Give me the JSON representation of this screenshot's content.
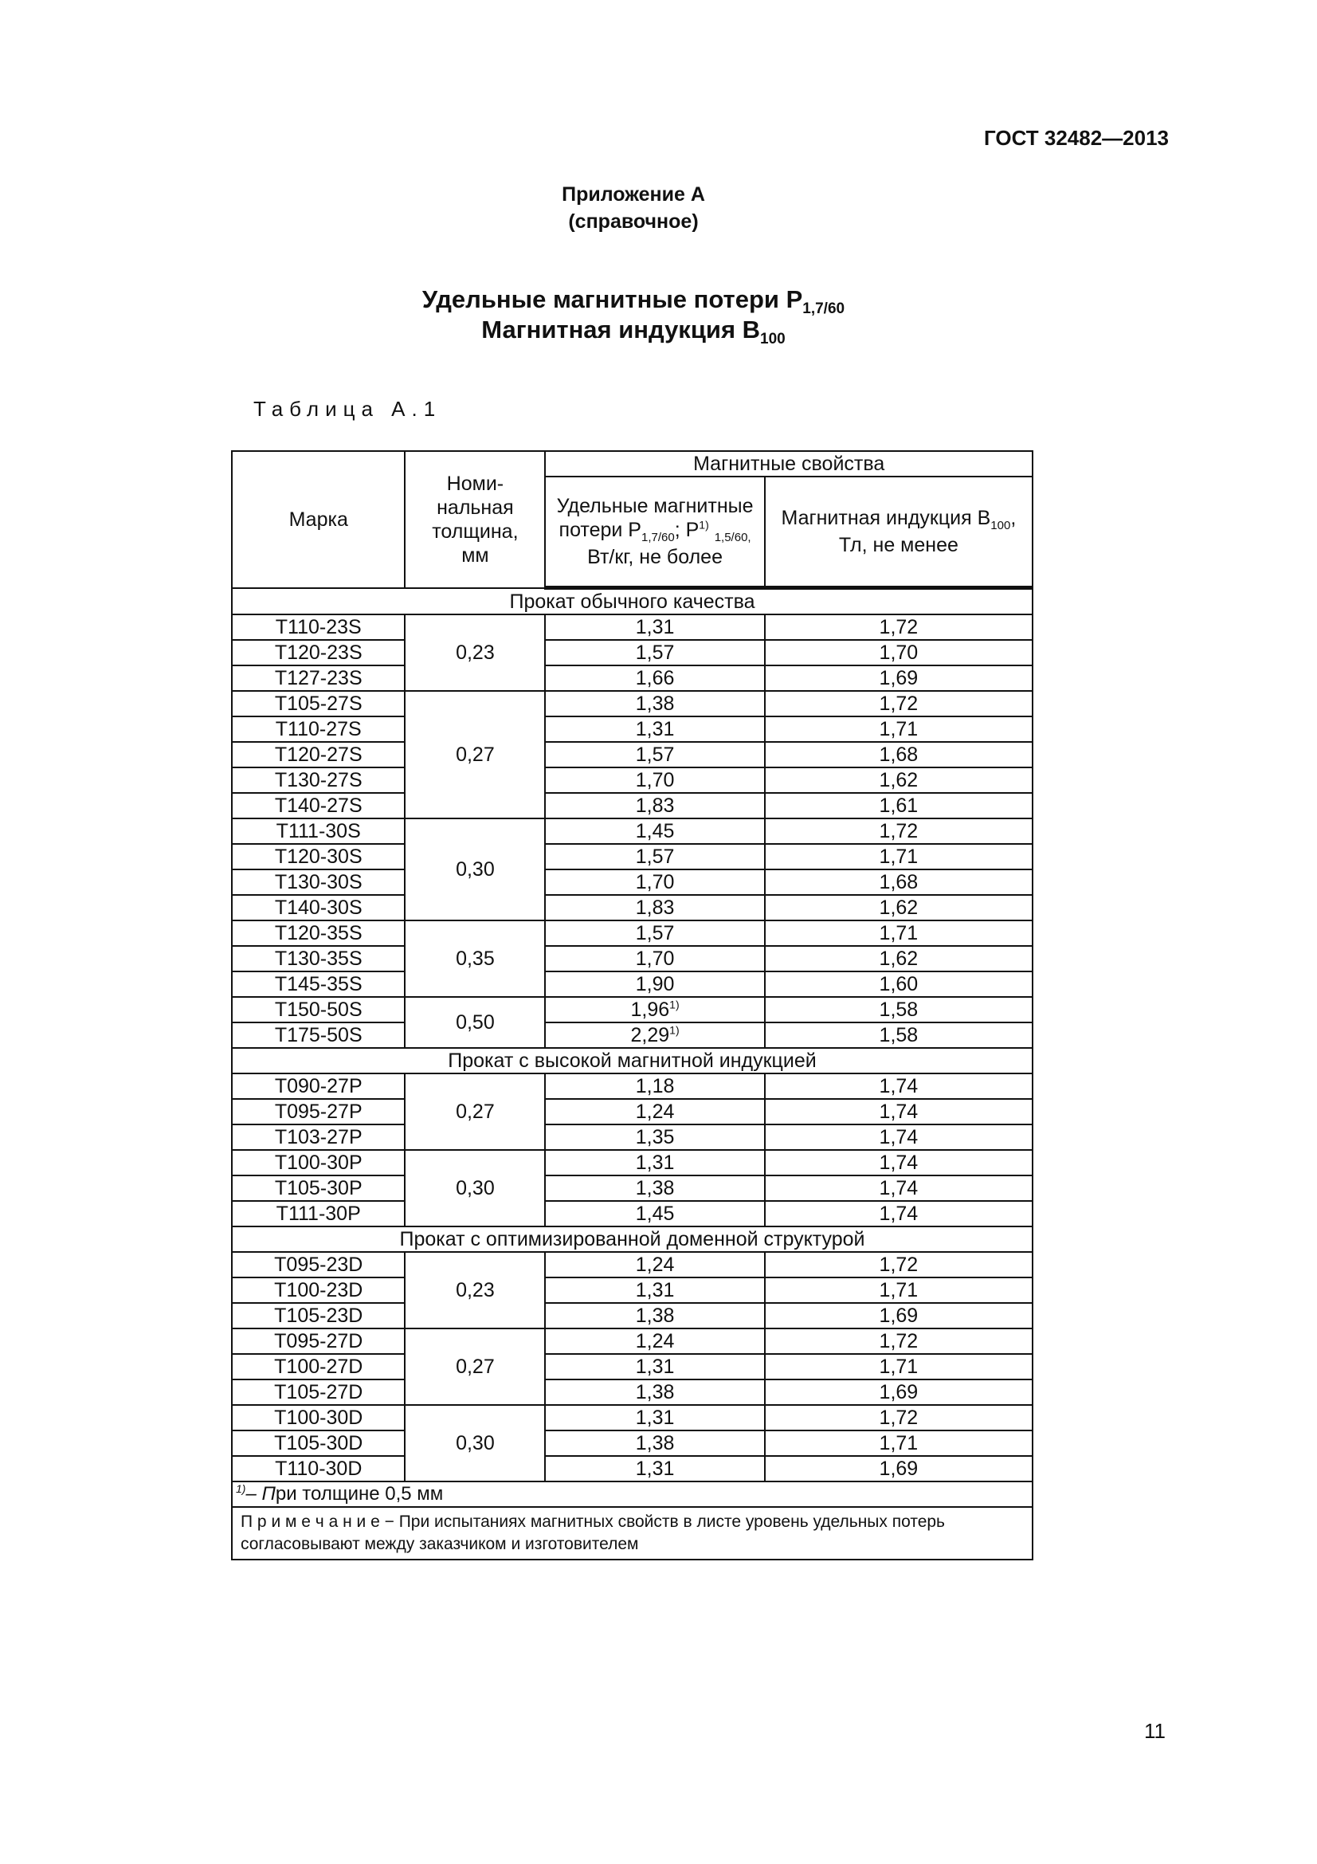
{
  "header": {
    "standard": "ГОСТ 32482—2013"
  },
  "appendix": {
    "title": "Приложение А",
    "kind": "(справочное)"
  },
  "title": {
    "line1": "Удельные магнитные потери P",
    "line1_sub": "1,7/60",
    "line2": "Магнитная индукция B",
    "line2_sub": "100"
  },
  "table_label": "Таблица А.1",
  "table": {
    "col_grade": "Марка",
    "col_thickness": "Номи-нальная толщина, мм",
    "col_group": "Магнитные свойства",
    "col_loss": "Удельные магнитные потери P1,7/60; P1) 1,5/60, Вт/кг, не более",
    "col_induction": "Магнитная индукция B100, Тл, не менее",
    "sections": [
      {
        "title": "Прокат обычного качества",
        "groups": [
          {
            "thickness": "0,23",
            "rows": [
              [
                "Т110-23S",
                "1,31",
                "1,72"
              ],
              [
                "Т120-23S",
                "1,57",
                "1,70"
              ],
              [
                "Т127-23S",
                "1,66",
                "1,69"
              ]
            ]
          },
          {
            "thickness": "0,27",
            "rows": [
              [
                "Т105-27S",
                "1,38",
                "1,72"
              ],
              [
                "Т110-27S",
                "1,31",
                "1,71"
              ],
              [
                "Т120-27S",
                "1,57",
                "1,68"
              ],
              [
                "Т130-27S",
                "1,70",
                "1,62"
              ],
              [
                "Т140-27S",
                "1,83",
                "1,61"
              ]
            ]
          },
          {
            "thickness": "0,30",
            "rows": [
              [
                "Т111-30S",
                "1,45",
                "1,72"
              ],
              [
                "Т120-30S",
                "1,57",
                "1,71"
              ],
              [
                "Т130-30S",
                "1,70",
                "1,68"
              ],
              [
                "Т140-30S",
                "1,83",
                "1,62"
              ]
            ]
          },
          {
            "thickness": "0,35",
            "rows": [
              [
                "Т120-35S",
                "1,57",
                "1,71"
              ],
              [
                "Т130-35S",
                "1,70",
                "1,62"
              ],
              [
                "Т145-35S",
                "1,90",
                "1,60"
              ]
            ]
          },
          {
            "thickness": "0,50",
            "rows": [
              [
                "Т150-50S",
                "1,96",
                "1,58",
                "1)"
              ],
              [
                "Т175-50S",
                "2,29",
                "1,58",
                "1)"
              ]
            ]
          }
        ]
      },
      {
        "title": "Прокат с высокой магнитной индукцией",
        "groups": [
          {
            "thickness": "0,27",
            "rows": [
              [
                "Т090-27Р",
                "1,18",
                "1,74"
              ],
              [
                "Т095-27Р",
                "1,24",
                "1,74"
              ],
              [
                "Т103-27Р",
                "1,35",
                "1,74"
              ]
            ]
          },
          {
            "thickness": "0,30",
            "rows": [
              [
                "Т100-30Р",
                "1,31",
                "1,74"
              ],
              [
                "Т105-30Р",
                "1,38",
                "1,74"
              ],
              [
                "Т111-30Р",
                "1,45",
                "1,74"
              ]
            ]
          }
        ]
      },
      {
        "title": "Прокат с оптимизированной доменной структурой",
        "groups": [
          {
            "thickness": "0,23",
            "rows": [
              [
                "Т095-23D",
                "1,24",
                "1,72"
              ],
              [
                "Т100-23D",
                "1,31",
                "1,71"
              ],
              [
                "Т105-23D",
                "1,38",
                "1,69"
              ]
            ]
          },
          {
            "thickness": "0,27",
            "rows": [
              [
                "Т095-27D",
                "1,24",
                "1,72"
              ],
              [
                "Т100-27D",
                "1,31",
                "1,71"
              ],
              [
                "Т105-27D",
                "1,38",
                "1,69"
              ]
            ]
          },
          {
            "thickness": "0,30",
            "rows": [
              [
                "Т100-30D",
                "1,31",
                "1,72"
              ],
              [
                "Т105-30D",
                "1,38",
                "1,71"
              ],
              [
                "Т110-30D",
                "1,31",
                "1,69"
              ]
            ]
          }
        ]
      }
    ],
    "footnote": "1)– При толщине 0,5 мм",
    "note": "П р и м е ч а н и е − При испытаниях магнитных свойств в листе уровень удельных потерь согласовывают между заказчиком  и изготовителем"
  },
  "page_number": "11"
}
